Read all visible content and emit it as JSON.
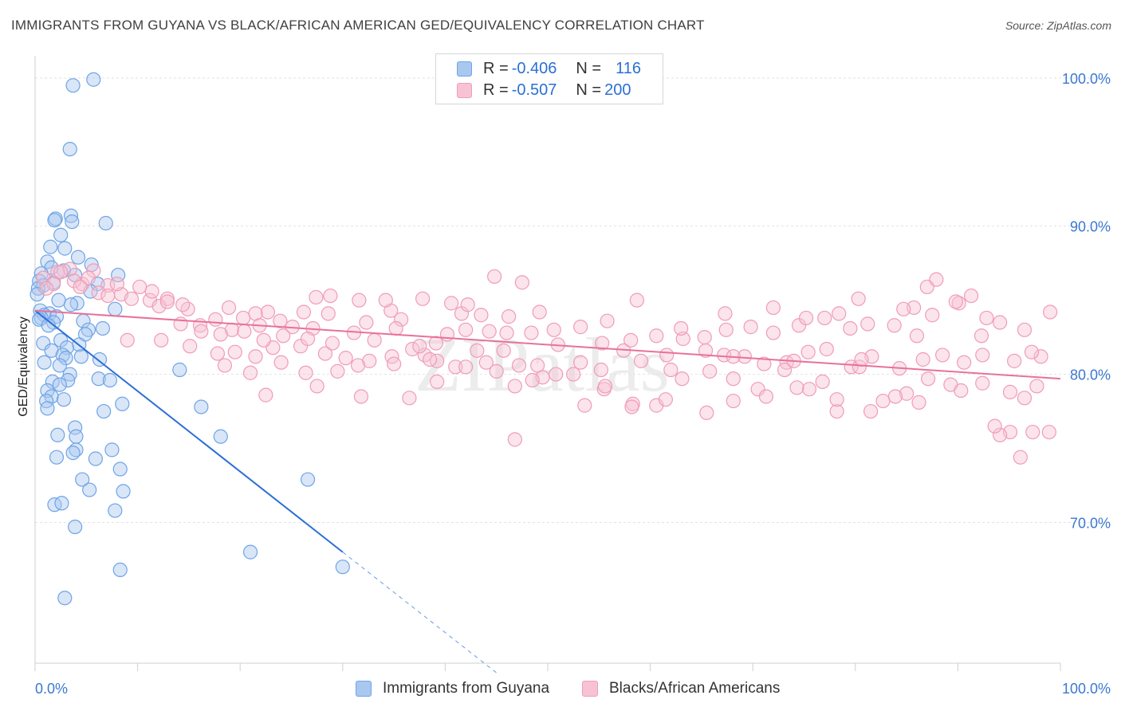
{
  "title": "IMMIGRANTS FROM GUYANA VS BLACK/AFRICAN AMERICAN GED/EQUIVALENCY CORRELATION CHART",
  "source": "Source: ZipAtlas.com",
  "watermark": "ZIPatlas",
  "legend": {
    "rows": [
      {
        "r_label": "R =",
        "r_value": "-0.406",
        "n_label": "N =",
        "n_value": "116"
      },
      {
        "r_label": "R =",
        "r_value": "-0.507",
        "n_label": "N =",
        "n_value": "200"
      }
    ]
  },
  "chart_data": {
    "type": "scatter",
    "title": "IMMIGRANTS FROM GUYANA VS BLACK/AFRICAN AMERICAN GED/EQUIVALENCY CORRELATION CHART",
    "xlabel": "",
    "ylabel": "GED/Equivalency",
    "xlim": [
      0,
      100
    ],
    "ylim": [
      60.5,
      101.5
    ],
    "x_tick_labels": [
      "0.0%",
      "100.0%"
    ],
    "y_ticks": [
      70,
      80,
      90,
      100
    ],
    "y_tick_labels": [
      "70.0%",
      "80.0%",
      "90.0%",
      "100.0%"
    ],
    "grid": true,
    "legend_position": "bottom",
    "series": [
      {
        "name": "Immigrants from Guyana",
        "color": "#6fa4e6",
        "fill": "#a9c8f0",
        "trend_color": "#2b6fd6",
        "trend": {
          "x0": 0,
          "y0": 84.3,
          "x1": 30,
          "y1": 68.0,
          "dash_to_x": 45
        },
        "points": [
          [
            5.7,
            99.9
          ],
          [
            3.7,
            99.5
          ],
          [
            3.4,
            95.2
          ],
          [
            2.0,
            90.5
          ],
          [
            3.5,
            90.7
          ],
          [
            6.9,
            90.2
          ],
          [
            1.9,
            90.4
          ],
          [
            3.6,
            90.3
          ],
          [
            2.5,
            89.4
          ],
          [
            1.5,
            88.6
          ],
          [
            2.9,
            88.5
          ],
          [
            4.2,
            87.9
          ],
          [
            1.2,
            87.6
          ],
          [
            5.5,
            87.4
          ],
          [
            1.6,
            87.2
          ],
          [
            2.8,
            87.0
          ],
          [
            0.6,
            86.8
          ],
          [
            8.1,
            86.7
          ],
          [
            3.9,
            86.7
          ],
          [
            0.4,
            86.3
          ],
          [
            1.8,
            86.2
          ],
          [
            6.1,
            86.1
          ],
          [
            0.8,
            86.0
          ],
          [
            0.3,
            85.8
          ],
          [
            5.4,
            85.6
          ],
          [
            0.2,
            85.4
          ],
          [
            2.3,
            85.0
          ],
          [
            4.1,
            84.8
          ],
          [
            3.5,
            84.7
          ],
          [
            7.8,
            84.4
          ],
          [
            0.5,
            84.3
          ],
          [
            1.4,
            84.1
          ],
          [
            0.9,
            84.0
          ],
          [
            2.1,
            83.9
          ],
          [
            0.6,
            83.8
          ],
          [
            0.4,
            83.7
          ],
          [
            4.7,
            83.6
          ],
          [
            1.8,
            83.5
          ],
          [
            1.3,
            83.3
          ],
          [
            6.6,
            83.1
          ],
          [
            5.2,
            83.0
          ],
          [
            4.9,
            82.7
          ],
          [
            2.5,
            82.3
          ],
          [
            0.8,
            82.1
          ],
          [
            4.3,
            82.0
          ],
          [
            3.1,
            81.8
          ],
          [
            1.6,
            81.6
          ],
          [
            2.7,
            81.3
          ],
          [
            4.5,
            81.2
          ],
          [
            3.0,
            81.1
          ],
          [
            6.3,
            81.0
          ],
          [
            0.9,
            80.8
          ],
          [
            2.4,
            80.6
          ],
          [
            14.1,
            80.3
          ],
          [
            3.4,
            80.0
          ],
          [
            6.2,
            79.7
          ],
          [
            7.3,
            79.6
          ],
          [
            3.2,
            79.6
          ],
          [
            1.7,
            79.5
          ],
          [
            2.4,
            79.3
          ],
          [
            1.2,
            78.9
          ],
          [
            1.6,
            78.5
          ],
          [
            2.8,
            78.3
          ],
          [
            1.1,
            78.2
          ],
          [
            8.5,
            78.0
          ],
          [
            16.2,
            77.8
          ],
          [
            1.2,
            77.7
          ],
          [
            6.7,
            77.5
          ],
          [
            3.9,
            76.4
          ],
          [
            2.2,
            75.9
          ],
          [
            4.0,
            75.8
          ],
          [
            18.1,
            75.8
          ],
          [
            7.5,
            74.9
          ],
          [
            4.0,
            74.9
          ],
          [
            3.7,
            74.7
          ],
          [
            2.1,
            74.4
          ],
          [
            5.9,
            74.3
          ],
          [
            8.3,
            73.6
          ],
          [
            26.6,
            72.9
          ],
          [
            4.6,
            72.9
          ],
          [
            8.6,
            72.1
          ],
          [
            5.3,
            72.2
          ],
          [
            1.9,
            71.2
          ],
          [
            2.6,
            71.3
          ],
          [
            7.8,
            70.8
          ],
          [
            3.9,
            69.7
          ],
          [
            21.0,
            68.0
          ],
          [
            30.0,
            67.0
          ],
          [
            8.3,
            66.8
          ],
          [
            2.9,
            64.9
          ]
        ]
      },
      {
        "name": "Blacks/African Americans",
        "color": "#f09cb7",
        "fill": "#f7c3d4",
        "trend_color": "#e8719a",
        "trend": {
          "x0": 0,
          "y0": 84.3,
          "x1": 100,
          "y1": 79.7
        },
        "points": [
          [
            3.4,
            87.1
          ],
          [
            5.7,
            87.0
          ],
          [
            2.2,
            86.9
          ],
          [
            0.8,
            86.5
          ],
          [
            1.8,
            86.1
          ],
          [
            4.6,
            86.1
          ],
          [
            1.1,
            85.8
          ],
          [
            7.1,
            86.0
          ],
          [
            8.4,
            85.4
          ],
          [
            9.4,
            85.1
          ],
          [
            11.2,
            85.0
          ],
          [
            6.2,
            85.5
          ],
          [
            3.8,
            86.3
          ],
          [
            5.2,
            86.5
          ],
          [
            2.5,
            86.9
          ],
          [
            4.4,
            85.9
          ],
          [
            8.0,
            86.1
          ],
          [
            11.4,
            85.6
          ],
          [
            12.9,
            85.1
          ],
          [
            14.9,
            84.4
          ],
          [
            12.1,
            84.6
          ],
          [
            18.9,
            84.5
          ],
          [
            22.7,
            84.2
          ],
          [
            21.5,
            84.1
          ],
          [
            17.6,
            83.7
          ],
          [
            26.2,
            84.2
          ],
          [
            28.6,
            84.1
          ],
          [
            28.8,
            85.3
          ],
          [
            31.6,
            85.0
          ],
          [
            14.2,
            83.4
          ],
          [
            16.1,
            83.3
          ],
          [
            19.2,
            83.0
          ],
          [
            21.9,
            83.3
          ],
          [
            25.1,
            83.2
          ],
          [
            27.1,
            83.1
          ],
          [
            32.3,
            83.5
          ],
          [
            35.7,
            83.7
          ],
          [
            34.7,
            84.3
          ],
          [
            40.6,
            84.8
          ],
          [
            41.6,
            84.1
          ],
          [
            43.5,
            84.0
          ],
          [
            46.2,
            83.9
          ],
          [
            9.0,
            82.3
          ],
          [
            12.3,
            82.3
          ],
          [
            15.1,
            81.9
          ],
          [
            17.8,
            81.4
          ],
          [
            19.5,
            81.5
          ],
          [
            21.5,
            81.2
          ],
          [
            23.2,
            81.8
          ],
          [
            25.9,
            81.9
          ],
          [
            28.3,
            81.4
          ],
          [
            30.3,
            81.1
          ],
          [
            32.6,
            80.9
          ],
          [
            34.8,
            81.2
          ],
          [
            36.8,
            81.7
          ],
          [
            38.0,
            81.3
          ],
          [
            39.2,
            80.9
          ],
          [
            41.0,
            80.5
          ],
          [
            43.1,
            81.6
          ],
          [
            45.7,
            81.6
          ],
          [
            47.2,
            80.6
          ],
          [
            49.0,
            80.6
          ],
          [
            51.0,
            82.0
          ],
          [
            53.2,
            80.8
          ],
          [
            55.3,
            82.1
          ],
          [
            57.4,
            81.6
          ],
          [
            59.1,
            80.9
          ],
          [
            61.6,
            81.3
          ],
          [
            63.2,
            82.4
          ],
          [
            65.4,
            81.6
          ],
          [
            67.2,
            81.3
          ],
          [
            69.2,
            81.2
          ],
          [
            71.1,
            80.7
          ],
          [
            73.3,
            80.8
          ],
          [
            75.4,
            81.5
          ],
          [
            77.2,
            81.7
          ],
          [
            79.6,
            80.5
          ],
          [
            81.6,
            81.2
          ],
          [
            84.3,
            80.4
          ],
          [
            86.6,
            81.0
          ],
          [
            88.5,
            81.3
          ],
          [
            90.6,
            80.8
          ],
          [
            92.4,
            81.3
          ],
          [
            95.5,
            80.9
          ],
          [
            98.1,
            81.2
          ],
          [
            27.5,
            79.2
          ],
          [
            31.5,
            80.6
          ],
          [
            39.2,
            79.5
          ],
          [
            44.0,
            80.8
          ],
          [
            46.8,
            79.2
          ],
          [
            49.5,
            79.8
          ],
          [
            52.5,
            80.0
          ],
          [
            55.5,
            79.0
          ],
          [
            58.3,
            78.0
          ],
          [
            60.6,
            77.9
          ],
          [
            63.1,
            79.7
          ],
          [
            65.8,
            80.2
          ],
          [
            68.1,
            79.7
          ],
          [
            70.5,
            79.0
          ],
          [
            73.1,
            80.3
          ],
          [
            75.5,
            79.0
          ],
          [
            78.2,
            77.5
          ],
          [
            80.4,
            80.5
          ],
          [
            82.7,
            78.2
          ],
          [
            85.0,
            78.7
          ],
          [
            87.1,
            79.7
          ],
          [
            89.3,
            79.3
          ],
          [
            92.4,
            79.4
          ],
          [
            95.1,
            78.8
          ],
          [
            97.7,
            79.2
          ],
          [
            98.9,
            76.1
          ],
          [
            95.1,
            76.1
          ],
          [
            96.1,
            74.4
          ],
          [
            97.3,
            76.1
          ],
          [
            94.1,
            75.9
          ],
          [
            93.6,
            76.5
          ],
          [
            96.5,
            78.4
          ],
          [
            90.3,
            78.9
          ],
          [
            86.2,
            78.1
          ],
          [
            83.9,
            78.5
          ],
          [
            81.5,
            77.5
          ],
          [
            78.2,
            78.3
          ],
          [
            76.8,
            79.5
          ],
          [
            74.3,
            79.1
          ],
          [
            71.3,
            78.5
          ],
          [
            68.1,
            78.2
          ],
          [
            65.5,
            77.4
          ],
          [
            61.5,
            78.3
          ],
          [
            58.2,
            77.8
          ],
          [
            55.6,
            79.2
          ],
          [
            53.6,
            77.9
          ],
          [
            50.8,
            80.0
          ],
          [
            48.5,
            79.6
          ],
          [
            45.0,
            80.2
          ],
          [
            42.0,
            80.5
          ],
          [
            38.5,
            81.0
          ],
          [
            35.0,
            80.7
          ],
          [
            31.8,
            78.5
          ],
          [
            29.5,
            80.2
          ],
          [
            26.4,
            80.1
          ],
          [
            24.0,
            80.8
          ],
          [
            21.0,
            80.1
          ],
          [
            18.5,
            80.6
          ],
          [
            22.5,
            78.6
          ],
          [
            36.5,
            78.4
          ],
          [
            46.8,
            75.6
          ],
          [
            55.2,
            80.3
          ],
          [
            62.0,
            80.3
          ],
          [
            68.1,
            81.2
          ],
          [
            74.0,
            80.9
          ],
          [
            80.6,
            81.0
          ],
          [
            86.0,
            82.6
          ],
          [
            92.3,
            82.6
          ],
          [
            97.2,
            81.5
          ],
          [
            90.1,
            84.8
          ],
          [
            85.7,
            84.5
          ],
          [
            83.8,
            83.3
          ],
          [
            81.2,
            83.4
          ],
          [
            79.5,
            83.1
          ],
          [
            77.0,
            83.8
          ],
          [
            74.5,
            83.3
          ],
          [
            72.0,
            82.8
          ],
          [
            69.8,
            83.2
          ],
          [
            67.4,
            83.0
          ],
          [
            65.3,
            82.5
          ],
          [
            63.0,
            83.1
          ],
          [
            60.6,
            82.6
          ],
          [
            58.1,
            82.3
          ],
          [
            55.8,
            83.6
          ],
          [
            53.2,
            83.2
          ],
          [
            50.6,
            83.0
          ],
          [
            48.4,
            82.8
          ],
          [
            46.0,
            82.8
          ],
          [
            44.3,
            82.9
          ],
          [
            42.0,
            83.0
          ],
          [
            40.2,
            82.7
          ],
          [
            39.1,
            82.1
          ],
          [
            37.5,
            81.9
          ],
          [
            35.2,
            83.1
          ],
          [
            33.1,
            82.3
          ],
          [
            31.1,
            82.8
          ],
          [
            29.0,
            82.1
          ],
          [
            26.6,
            82.4
          ],
          [
            24.2,
            82.6
          ],
          [
            22.3,
            82.3
          ],
          [
            20.4,
            82.9
          ],
          [
            18.1,
            82.7
          ],
          [
            16.2,
            82.9
          ],
          [
            10.2,
            85.9
          ],
          [
            12.9,
            84.9
          ],
          [
            14.4,
            84.7
          ],
          [
            7.1,
            85.3
          ],
          [
            20.3,
            83.8
          ],
          [
            23.9,
            83.6
          ],
          [
            27.4,
            85.2
          ],
          [
            34.2,
            85.0
          ],
          [
            37.8,
            85.1
          ],
          [
            42.2,
            84.7
          ],
          [
            44.8,
            86.6
          ],
          [
            47.5,
            86.2
          ],
          [
            49.2,
            84.2
          ],
          [
            58.7,
            85.0
          ],
          [
            67.3,
            84.1
          ],
          [
            72.0,
            84.5
          ],
          [
            75.2,
            83.8
          ],
          [
            78.4,
            84.1
          ],
          [
            80.3,
            85.1
          ],
          [
            84.7,
            84.4
          ],
          [
            87.5,
            84.0
          ],
          [
            89.8,
            84.9
          ],
          [
            91.3,
            85.3
          ],
          [
            92.8,
            83.8
          ],
          [
            94.1,
            83.5
          ],
          [
            96.5,
            83.0
          ],
          [
            99.0,
            84.2
          ],
          [
            87.0,
            85.9
          ],
          [
            87.9,
            86.4
          ]
        ]
      }
    ]
  }
}
